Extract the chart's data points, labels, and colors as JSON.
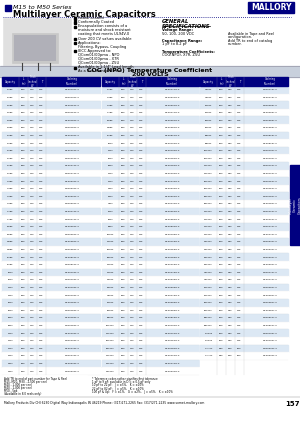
{
  "title_series": "M15 to M50 Series",
  "title_main": "Multilayer Ceramic Capacitors",
  "brand": "MALLORY",
  "header_blue": "#000080",
  "section_bg": "#d0d8e8",
  "table_header_blue": "#000080",
  "section_title_line1": "COG (NPO) Temperature Coefficient",
  "section_title_line2": "200 VOLTS",
  "footer_text": "Mallory Products Div CHI 6230 Digital Way Indianapolis IN 46219 Phone: (317)271-2265 Fax: (317)271-2235 www.somet-mallory.com",
  "page_num": "157",
  "right_tab_text": "Capacitors",
  "note_left": [
    "Add TR to end of part number for Tape & Reel",
    "M15, M20, M30 - 2,500 per reel",
    "M40 - 1,000 per reel",
    "M40 - 1,000 per reel",
    "M50 - 5pk",
    "(Available in 8.0 reels only)"
  ],
  "note_right": [
    "* Tolerance codes rather signifies first tolerance",
    "1 pF to 9 pF: available in D = ± 0.5 pF only",
    "10 pF to 22 pF:   J = ±5%,   K = ±10%",
    "22 pF to 82 pF:   J = ±5%,   K = ±10%",
    "100 pF & Up:   F = ±1%,   G = ±2%,   J = ±5%,   K = ±10%"
  ],
  "table_data_col1": [
    [
      "1.0pF",
      "190",
      "240",
      "125",
      "500",
      "M150101F-S"
    ],
    [
      "1.0pF",
      "190",
      "240",
      "125",
      "1000",
      "M200101F-S"
    ],
    [
      "1.5pF",
      "190",
      "240",
      "125",
      "500",
      "M150151F-S"
    ],
    [
      "1.5pF",
      "190",
      "240",
      "125",
      "1000",
      "M200151F-S"
    ],
    [
      "1.8pF",
      "190",
      "240",
      "125",
      "500",
      "M150181F-S"
    ],
    [
      "1.8pF",
      "190",
      "240",
      "125",
      "1000",
      "M200181F-S"
    ],
    [
      "2.0pF",
      "190",
      "240",
      "125",
      "500",
      "M150201F-S"
    ],
    [
      "2.0pF",
      "190",
      "240",
      "125",
      "1000",
      "M200201F-S"
    ],
    [
      "2.2pF",
      "190",
      "240",
      "125",
      "500",
      "M150221F-S"
    ],
    [
      "2.2pF",
      "190",
      "240",
      "125",
      "1000",
      "M200221F-S"
    ],
    [
      "2.7pF",
      "190",
      "240",
      "125",
      "500",
      "M150271F-S"
    ],
    [
      "2.7pF",
      "190",
      "240",
      "125",
      "1000",
      "M200271F-S"
    ],
    [
      "3.3pF",
      "190",
      "240",
      "125",
      "500",
      "M150331F-S"
    ],
    [
      "3.3pF",
      "190",
      "240",
      "125",
      "1000",
      "M200331F-S"
    ],
    [
      "3.9pF",
      "190",
      "240",
      "125",
      "500",
      "M150391F-S"
    ],
    [
      "3.9pF",
      "190",
      "240",
      "125",
      "1000",
      "M200391F-S"
    ],
    [
      "4.7pF",
      "190",
      "240",
      "125",
      "500",
      "M150471F-S"
    ],
    [
      "4.7pF",
      "190",
      "240",
      "125",
      "1000",
      "M200471F-S"
    ],
    [
      "5.6pF",
      "190",
      "240",
      "125",
      "500",
      "M150561F-S"
    ],
    [
      "5.6pF",
      "190",
      "240",
      "125",
      "1000",
      "M200561F-S"
    ],
    [
      "6.8pF",
      "190",
      "240",
      "125",
      "500",
      "M150681F-S"
    ],
    [
      "6.8pF",
      "190",
      "240",
      "125",
      "1000",
      "M200681F-S"
    ],
    [
      "8.2pF",
      "190",
      "240",
      "125",
      "500",
      "M150821F-S"
    ],
    [
      "8.2pF",
      "190",
      "240",
      "125",
      "1000",
      "M200821F-S"
    ],
    [
      "10pF",
      "190",
      "240",
      "125",
      "500",
      "M150102F-S"
    ],
    [
      "10pF",
      "190",
      "240",
      "125",
      "1000",
      "M200102F-S"
    ],
    [
      "12pF",
      "190",
      "240",
      "125",
      "500",
      "M150122F-S"
    ],
    [
      "12pF",
      "190",
      "240",
      "125",
      "1000",
      "M200122F-S"
    ],
    [
      "15pF",
      "190",
      "240",
      "125",
      "500",
      "M150152F-S"
    ],
    [
      "15pF",
      "190",
      "240",
      "125",
      "1000",
      "M200152F-S"
    ],
    [
      "18pF",
      "190",
      "240",
      "125",
      "500",
      "M150182F-S"
    ],
    [
      "18pF",
      "190",
      "240",
      "125",
      "1000",
      "M200182F-S"
    ],
    [
      "22pF",
      "190",
      "240",
      "125",
      "500",
      "M150222F-S"
    ],
    [
      "22pF",
      "190",
      "240",
      "125",
      "1000",
      "M200222F-S"
    ],
    [
      "27pF",
      "190",
      "240",
      "125",
      "500",
      "M150272F-S"
    ],
    [
      "27pF",
      "190",
      "240",
      "125",
      "1000",
      "M200272F-S"
    ],
    [
      "33pF",
      "190",
      "240",
      "125",
      "500",
      "M150332F-S"
    ],
    [
      "33pF",
      "190",
      "240",
      "125",
      "1000",
      "M200332F-S"
    ]
  ],
  "table_data_col2": [
    [
      "2.7pF",
      "190",
      "240",
      "125",
      "500",
      "M150271G-S"
    ],
    [
      "3.3pF",
      "190",
      "240",
      "125",
      "500",
      "M150331G-S"
    ],
    [
      "3.9pF",
      "190",
      "240",
      "125",
      "500",
      "M150391G-S"
    ],
    [
      "4.7pF",
      "190",
      "240",
      "125",
      "500",
      "M150471G-S"
    ],
    [
      "5.6pF",
      "190",
      "240",
      "125",
      "500",
      "M150561G-S"
    ],
    [
      "6.8pF",
      "190",
      "240",
      "125",
      "500",
      "M150681G-S"
    ],
    [
      "8.2pF",
      "190",
      "240",
      "125",
      "500",
      "M150821G-S"
    ],
    [
      "10pF",
      "190",
      "240",
      "125",
      "500",
      "M150102G-S"
    ],
    [
      "12pF",
      "190",
      "240",
      "125",
      "500",
      "M150122G-S"
    ],
    [
      "15pF",
      "190",
      "240",
      "125",
      "500",
      "M150152G-S"
    ],
    [
      "18pF",
      "190",
      "240",
      "125",
      "500",
      "M150182G-S"
    ],
    [
      "22pF",
      "190",
      "240",
      "125",
      "500",
      "M150222G-S"
    ],
    [
      "27pF",
      "190",
      "240",
      "125",
      "500",
      "M150272G-S"
    ],
    [
      "33pF",
      "190",
      "240",
      "125",
      "500",
      "M150332G-S"
    ],
    [
      "39pF",
      "190",
      "240",
      "125",
      "500",
      "M150392G-S"
    ],
    [
      "47pF",
      "190",
      "240",
      "125",
      "500",
      "M150472G-S"
    ],
    [
      "56pF",
      "190",
      "240",
      "125",
      "500",
      "M150562G-S"
    ],
    [
      "68pF",
      "190",
      "240",
      "125",
      "500",
      "M150682G-S"
    ],
    [
      "82pF",
      "190",
      "240",
      "125",
      "500",
      "M150822G-S"
    ],
    [
      "100pF",
      "190",
      "240",
      "125",
      "500",
      "M150103G-S"
    ],
    [
      "120pF",
      "190",
      "240",
      "125",
      "500",
      "M150123G-S"
    ],
    [
      "150pF",
      "190",
      "240",
      "125",
      "500",
      "M150153G-S"
    ],
    [
      "180pF",
      "190",
      "240",
      "125",
      "500",
      "M150183G-S"
    ],
    [
      "220pF",
      "190",
      "240",
      "125",
      "500",
      "M150223G-S"
    ],
    [
      "270pF",
      "190",
      "240",
      "125",
      "500",
      "M150273G-S"
    ],
    [
      "330pF",
      "190",
      "240",
      "125",
      "500",
      "M150333G-S"
    ],
    [
      "390pF",
      "190",
      "240",
      "125",
      "500",
      "M150393G-S"
    ],
    [
      "470pF",
      "190",
      "240",
      "125",
      "500",
      "M150473G-S"
    ],
    [
      "560pF",
      "190",
      "240",
      "125",
      "500",
      "M150563G-S"
    ],
    [
      "680pF",
      "190",
      "240",
      "125",
      "500",
      "M150683G-S"
    ],
    [
      "820pF",
      "190",
      "240",
      "125",
      "500",
      "M150823G-S"
    ],
    [
      "1000pF",
      "190",
      "240",
      "125",
      "500",
      "M150104G-S"
    ],
    [
      "1200pF",
      "190",
      "240",
      "125",
      "500",
      "M150124G-S"
    ],
    [
      "1500pF",
      "190",
      "240",
      "125",
      "500",
      "M150154G-S"
    ],
    [
      "1800pF",
      "190",
      "240",
      "125",
      "500",
      "M150184G-S"
    ],
    [
      "2200pF",
      "190",
      "240",
      "125",
      "500",
      "M150224G-S"
    ],
    [
      "2700pF",
      "190",
      "240",
      "125",
      "500",
      "M150274G-S"
    ],
    [
      "3300pF",
      "190",
      "240",
      "125",
      "500",
      "M150334G-S"
    ]
  ],
  "table_data_col3": [
    [
      "470pF",
      "200",
      "340",
      "125",
      "1000",
      "M200473Y-S"
    ],
    [
      "470pF",
      "200",
      "340",
      "125",
      "500",
      "M150473Y-S"
    ],
    [
      "560pF",
      "200",
      "340",
      "125",
      "1000",
      "M200563Y-S"
    ],
    [
      "560pF",
      "200",
      "340",
      "125",
      "500",
      "M150563Y-S"
    ],
    [
      "680pF",
      "200",
      "340",
      "125",
      "1000",
      "M200683Y-S"
    ],
    [
      "680pF",
      "200",
      "340",
      "125",
      "500",
      "M150683Y-S"
    ],
    [
      "820pF",
      "200",
      "340",
      "125",
      "1000",
      "M200823Y-S"
    ],
    [
      "820pF",
      "200",
      "340",
      "125",
      "500",
      "M150823Y-S"
    ],
    [
      "1000pF",
      "200",
      "340",
      "125",
      "1000",
      "M200104Y-S"
    ],
    [
      "1000pF",
      "200",
      "340",
      "125",
      "500",
      "M150104Y-S"
    ],
    [
      "1200pF",
      "200",
      "340",
      "125",
      "1000",
      "M200124Y-S"
    ],
    [
      "1200pF",
      "200",
      "340",
      "125",
      "500",
      "M150124Y-S"
    ],
    [
      "1500pF",
      "200",
      "340",
      "125",
      "1000",
      "M200154Y-S"
    ],
    [
      "1500pF",
      "200",
      "340",
      "125",
      "500",
      "M150154Y-S"
    ],
    [
      "1800pF",
      "200",
      "340",
      "125",
      "1000",
      "M200184Y-S"
    ],
    [
      "1800pF",
      "200",
      "340",
      "125",
      "500",
      "M150184Y-S"
    ],
    [
      "2200pF",
      "200",
      "340",
      "125",
      "1000",
      "M200224Y-S"
    ],
    [
      "2200pF",
      "200",
      "340",
      "125",
      "500",
      "M150224Y-S"
    ],
    [
      "2700pF",
      "200",
      "340",
      "125",
      "1000",
      "M200274Y-S"
    ],
    [
      "2700pF",
      "200",
      "340",
      "125",
      "500",
      "M150274Y-S"
    ],
    [
      "3300pF",
      "200",
      "340",
      "125",
      "1000",
      "M200334Y-S"
    ],
    [
      "3300pF",
      "200",
      "340",
      "125",
      "500",
      "M150334Y-S"
    ],
    [
      "3900pF",
      "200",
      "340",
      "125",
      "1000",
      "M200394Y-S"
    ],
    [
      "3900pF",
      "200",
      "340",
      "125",
      "500",
      "M150394Y-S"
    ],
    [
      "4700pF",
      "200",
      "340",
      "125",
      "1000",
      "M200474Y-S"
    ],
    [
      "4700pF",
      "200",
      "340",
      "125",
      "500",
      "M150474Y-S"
    ],
    [
      "5600pF",
      "200",
      "340",
      "125",
      "1000",
      "M200564Y-S"
    ],
    [
      "5600pF",
      "200",
      "340",
      "125",
      "500",
      "M150564Y-S"
    ],
    [
      "6800pF",
      "200",
      "340",
      "125",
      "1000",
      "M200684Y-S"
    ],
    [
      "6800pF",
      "200",
      "340",
      "125",
      "500",
      "M150684Y-S"
    ],
    [
      "8200pF",
      "200",
      "340",
      "125",
      "1000",
      "M200824Y-S"
    ],
    [
      "8200pF",
      "200",
      "340",
      "125",
      "500",
      "M150824Y-S"
    ],
    [
      "0.01uF",
      "200",
      "340",
      "125",
      "1000",
      "M200105Y-S"
    ],
    [
      "0.01uF",
      "200",
      "340",
      "125",
      "500",
      "M150105Y-S"
    ],
    [
      "0.1 uF",
      "300",
      "380",
      "200",
      "250",
      "M200334T-S"
    ],
    [
      "0.1 uF",
      "300",
      "380",
      "200",
      "500",
      "M150334T-S"
    ]
  ]
}
